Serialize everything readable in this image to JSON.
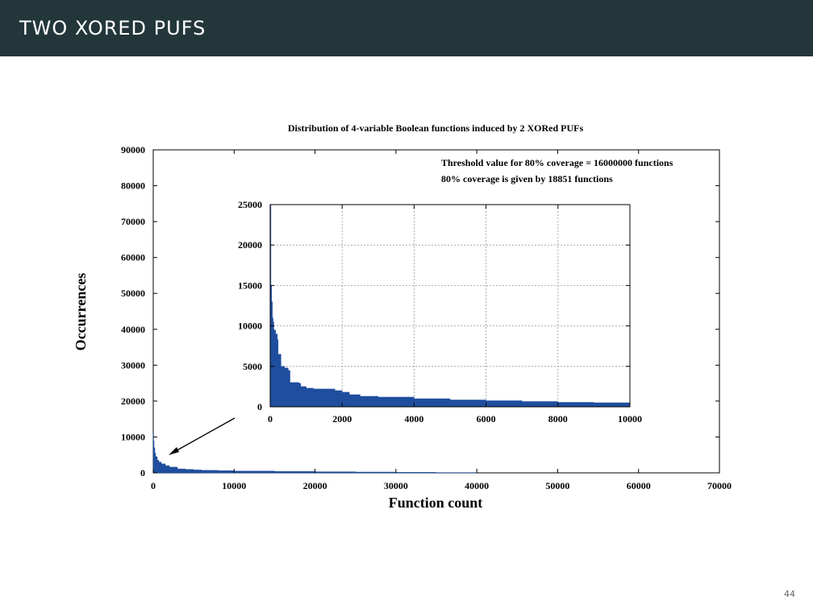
{
  "slide": {
    "title": "TWO XORED PUFS",
    "page_number": "44"
  },
  "colors": {
    "header_bg": "#23373b",
    "series_fill": "#1f4e9e",
    "grid": "#999999"
  },
  "chart_data": [
    {
      "id": "main",
      "type": "area",
      "title": "Distribution of 4-variable Boolean functions induced by 2 XORed PUFs",
      "xlabel": "Function count",
      "ylabel": "Occurrences",
      "xlim": [
        0,
        70000
      ],
      "ylim": [
        0,
        90000
      ],
      "xticks": [
        "0",
        "10000",
        "20000",
        "30000",
        "40000",
        "50000",
        "60000",
        "70000"
      ],
      "yticks": [
        "0",
        "10000",
        "20000",
        "30000",
        "40000",
        "50000",
        "60000",
        "70000",
        "80000",
        "90000"
      ],
      "grid": false,
      "annotations": [
        "Threshold value for 80% coverage = 16000000 functions",
        "80% coverage is given by 18851 functions"
      ],
      "x": [
        0,
        50,
        100,
        200,
        300,
        500,
        700,
        1000,
        1500,
        2000,
        3000,
        4000,
        5000,
        6000,
        8000,
        10000,
        15000,
        20000,
        25000,
        30000,
        35000,
        40000
      ],
      "y": [
        11000,
        9000,
        7000,
        5500,
        4500,
        3500,
        3000,
        2500,
        2000,
        1600,
        1100,
        950,
        800,
        700,
        600,
        500,
        380,
        300,
        220,
        150,
        80,
        0
      ]
    },
    {
      "id": "inset",
      "type": "area",
      "xlim": [
        0,
        10000
      ],
      "ylim": [
        0,
        25000
      ],
      "xticks": [
        "0",
        "2000",
        "4000",
        "6000",
        "8000",
        "10000"
      ],
      "yticks": [
        "0",
        "5000",
        "10000",
        "15000",
        "20000",
        "25000"
      ],
      "grid": true,
      "x": [
        0,
        20,
        40,
        60,
        80,
        100,
        150,
        200,
        220,
        250,
        300,
        400,
        500,
        550,
        800,
        850,
        1000,
        1200,
        1500,
        1800,
        2000,
        2200,
        2500,
        3000,
        4000,
        5000,
        6000,
        7000,
        8000,
        9000,
        10000
      ],
      "y": [
        25000,
        15000,
        13000,
        11000,
        10500,
        9500,
        9000,
        8300,
        6500,
        6500,
        5000,
        4800,
        4500,
        3000,
        2900,
        2500,
        2300,
        2200,
        2200,
        2000,
        1800,
        1500,
        1300,
        1200,
        1000,
        850,
        750,
        650,
        550,
        500,
        450
      ]
    }
  ]
}
